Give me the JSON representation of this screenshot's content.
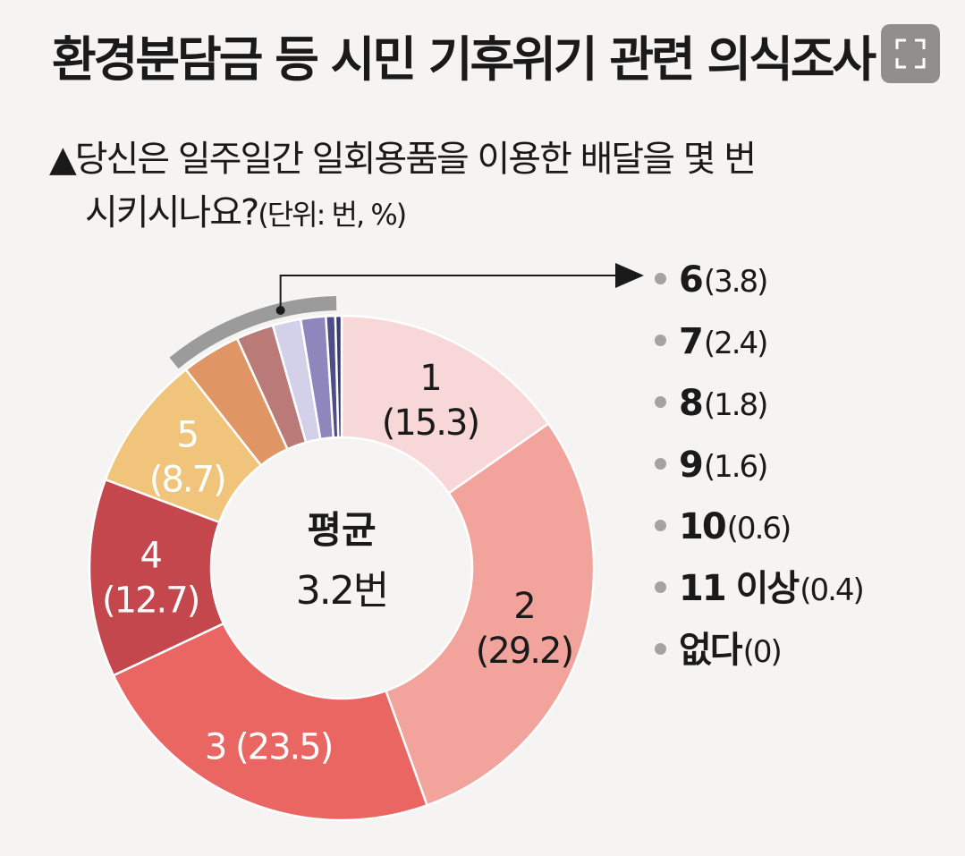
{
  "title": "환경분담금 등 시민 기후위기 관련 의식조사",
  "question": {
    "line1": "▲당신은 일주일간 일회용품을 이용한 배달을 몇 번",
    "line2_text": "시키시나요?",
    "line2_unit": "(단위: 번, %)"
  },
  "center": {
    "line1": "평균",
    "line2": "3.2번"
  },
  "chart_data": {
    "type": "pie",
    "variant": "donut",
    "slices": [
      {
        "category": "1",
        "value": 15.3,
        "color": "#f8d7d8"
      },
      {
        "category": "2",
        "value": 29.2,
        "color": "#f2a49c"
      },
      {
        "category": "3",
        "value": 23.5,
        "color": "#e96662"
      },
      {
        "category": "4",
        "value": 12.7,
        "color": "#c3474d"
      },
      {
        "category": "5",
        "value": 8.7,
        "color": "#f0c57b"
      },
      {
        "category": "6",
        "value": 3.8,
        "color": "#df9664"
      },
      {
        "category": "7",
        "value": 2.4,
        "color": "#b97a78"
      },
      {
        "category": "8",
        "value": 1.8,
        "color": "#d3d1ea"
      },
      {
        "category": "9",
        "value": 1.6,
        "color": "#8f86bd"
      },
      {
        "category": "10",
        "value": 0.6,
        "color": "#4f4c8a"
      },
      {
        "category": "11 이상",
        "value": 0.4,
        "color": "#333d73"
      },
      {
        "category": "없다",
        "value": 0,
        "color": "#dddddd"
      }
    ],
    "slice_labels": [
      {
        "index": 0,
        "line1": "1",
        "line2": "(15.3)"
      },
      {
        "index": 1,
        "line1": "2",
        "line2": "(29.2)"
      },
      {
        "index": 2,
        "line1": "3 (23.5)",
        "line2": ""
      },
      {
        "index": 3,
        "line1": "4",
        "line2": "(12.7)"
      },
      {
        "index": 4,
        "line1": "5",
        "line2": "(8.7)"
      }
    ],
    "legend": [
      {
        "category": "6",
        "value": "(3.8)"
      },
      {
        "category": "7",
        "value": "(2.4)"
      },
      {
        "category": "8",
        "value": "(1.8)"
      },
      {
        "category": "9",
        "value": "(1.6)"
      },
      {
        "category": "10",
        "value": "(0.6)"
      },
      {
        "category": "11 이상",
        "value": "(0.4)"
      },
      {
        "category": "없다",
        "value": "(0)"
      }
    ],
    "bracket_color": "#9b9b9b",
    "dot_color": "#a3a3a3"
  }
}
